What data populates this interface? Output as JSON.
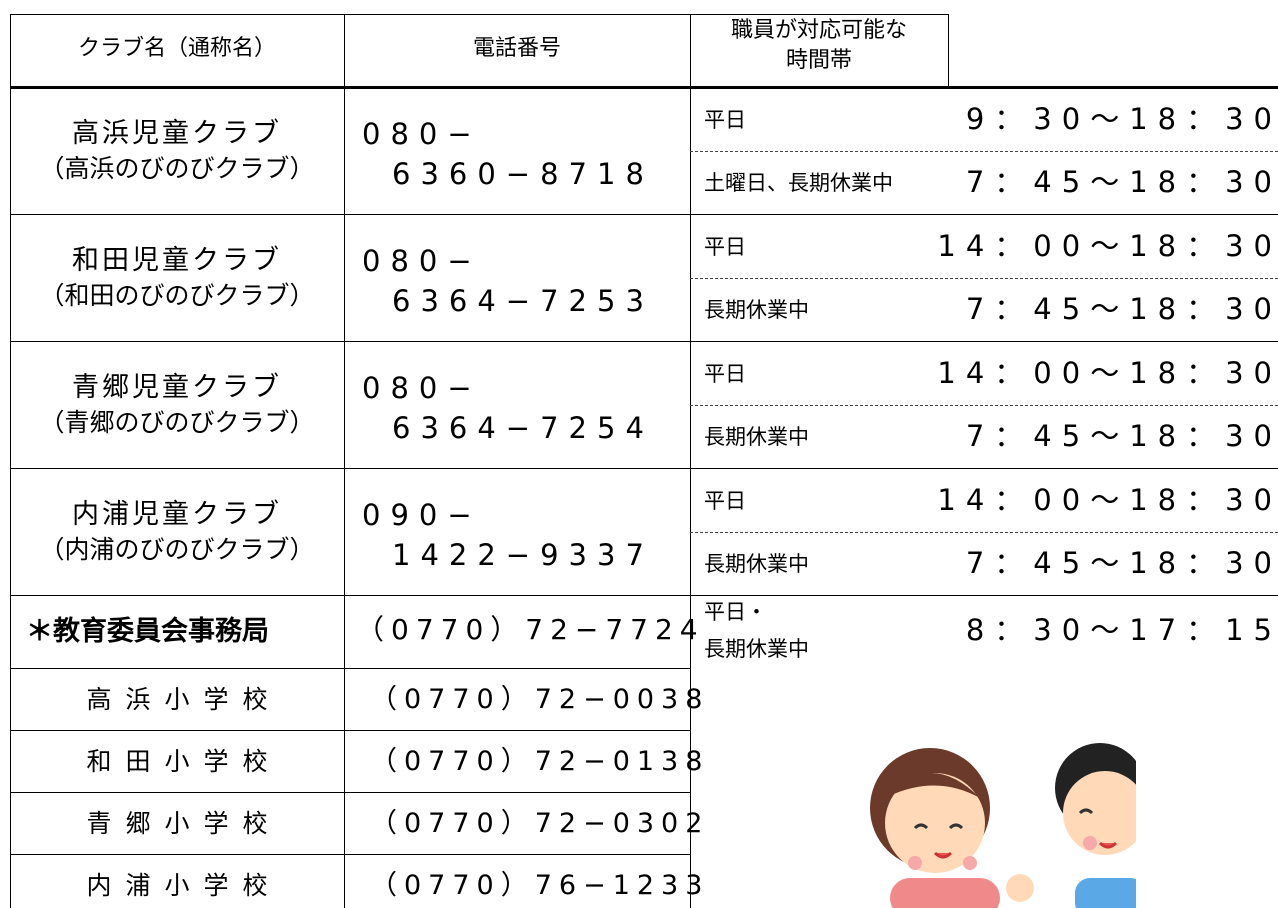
{
  "table": {
    "header": [
      "クラブ名（通称名）",
      "電話番号",
      [
        "職員が対応可能な",
        "時間帯"
      ]
    ],
    "clubs": [
      {
        "name": "高浜児童クラブ",
        "alias": "（高浜のびのびクラブ）",
        "phone": [
          "080−",
          "6360−8718"
        ],
        "hours": [
          [
            "平日",
            "9：30〜18：30"
          ],
          [
            "土曜日、長期休業中",
            "7：45〜18：30"
          ]
        ]
      },
      {
        "name": "和田児童クラブ",
        "alias": "（和田のびのびクラブ）",
        "phone": [
          "080−",
          "6364−7253"
        ],
        "hours": [
          [
            "平日",
            "14：00〜18：30"
          ],
          [
            "長期休業中",
            "7：45〜18：30"
          ]
        ]
      },
      {
        "name": "青郷児童クラブ",
        "alias": "（青郷のびのびクラブ）",
        "phone": [
          "080−",
          "6364−7254"
        ],
        "hours": [
          [
            "平日",
            "14：00〜18：30"
          ],
          [
            "長期休業中",
            "7：45〜18：30"
          ]
        ]
      },
      {
        "name": "内浦児童クラブ",
        "alias": "（内浦のびのびクラブ）",
        "phone": [
          "090−",
          "1422−9337"
        ],
        "hours": [
          [
            "平日",
            "14：00〜18：30"
          ],
          [
            "長期休業中",
            "7：45〜18：30"
          ]
        ]
      }
    ],
    "office": {
      "name": "＊教育委員会事務局",
      "phone": "（0770）72−7724",
      "hours": [
        "平日・",
        "長期休業中"
      ],
      "time": "8：30〜17：15"
    },
    "schools": [
      {
        "name": "高浜小学校",
        "phone": "（0770）72−0038"
      },
      {
        "name": "和田小学校",
        "phone": "（0770）72−0138"
      },
      {
        "name": "青郷小学校",
        "phone": "（0770）72−0302"
      },
      {
        "name": "内浦小学校",
        "phone": "（0770）76−1233"
      }
    ]
  }
}
